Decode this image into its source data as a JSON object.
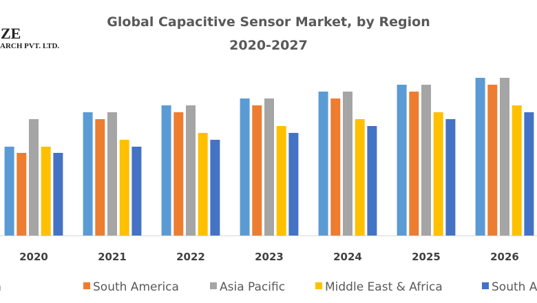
{
  "logo": {
    "line1": "ZE",
    "line2": "ARCH PVT. LTD."
  },
  "chart_data": {
    "type": "bar",
    "title": "Global Capacitive Sensor Market, by Region",
    "subtitle": "2020-2027",
    "xlabel": "",
    "ylabel": "",
    "grid": false,
    "legend_position": "bottom",
    "categories": [
      "2020",
      "2021",
      "2022",
      "2023",
      "2024",
      "2025",
      "2026"
    ],
    "series": [
      {
        "name": "North America",
        "color": "#5B9BD5",
        "values": [
          12.9,
          17.9,
          18.9,
          19.9,
          20.9,
          21.9,
          22.9
        ]
      },
      {
        "name": "South America",
        "color": "#ED7D31",
        "values": [
          12.0,
          16.9,
          17.9,
          18.9,
          19.9,
          20.9,
          21.9
        ]
      },
      {
        "name": "Asia Pacific",
        "color": "#A5A5A5",
        "values": [
          16.9,
          17.9,
          18.9,
          19.9,
          20.9,
          21.9,
          22.9
        ]
      },
      {
        "name": "Middle East & Africa",
        "color": "#FFC000",
        "values": [
          12.9,
          13.9,
          14.9,
          15.9,
          16.9,
          17.9,
          18.9
        ]
      },
      {
        "name": "South A",
        "color": "#4472C4",
        "values": [
          12.0,
          12.9,
          13.9,
          14.9,
          15.9,
          16.9,
          17.9
        ]
      }
    ]
  }
}
